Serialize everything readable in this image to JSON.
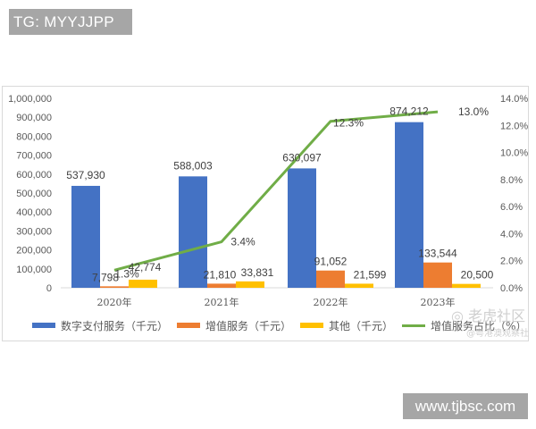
{
  "watermarks": {
    "top_left": "TG: MYYJJPP",
    "bottom_right": "www.tjbsc.com",
    "chart_brand": "老虎社区",
    "chart_source": "@粤港澳观察社"
  },
  "colors": {
    "digital_payment": "#4472c4",
    "value_added": "#ed7d31",
    "other": "#ffc000",
    "ratio_line": "#70ad47"
  },
  "legend": {
    "digital_payment": "数字支付服务（千元）",
    "value_added": "增值服务（千元）",
    "other": "其他（千元）",
    "ratio": "增值服务占比（%）"
  },
  "axes": {
    "left_ticks": [
      "1,000,000",
      "900,000",
      "800,000",
      "700,000",
      "600,000",
      "500,000",
      "400,000",
      "300,000",
      "200,000",
      "100,000",
      "0"
    ],
    "right_ticks": [
      "14.0%",
      "12.0%",
      "10.0%",
      "8.0%",
      "6.0%",
      "4.0%",
      "2.0%",
      "0.0%"
    ]
  },
  "labels": {
    "categories": [
      "2020年",
      "2021年",
      "2022年",
      "2023年"
    ],
    "digital_payment": [
      "537,930",
      "588,003",
      "630,097",
      "874,212"
    ],
    "value_added": [
      "7,798",
      "21,810",
      "91,052",
      "133,544"
    ],
    "other": [
      "42,774",
      "33,831",
      "21,599",
      "20,500"
    ],
    "ratio": [
      "1.3%",
      "3.4%",
      "12.3%",
      "13.0%"
    ]
  },
  "chart_data": {
    "type": "bar",
    "title": "",
    "xlabel": "",
    "ylabel": "",
    "categories": [
      "2020年",
      "2021年",
      "2022年",
      "2023年"
    ],
    "series": [
      {
        "name": "数字支付服务（千元）",
        "type": "bar",
        "axis": "left",
        "values": [
          537930,
          588003,
          630097,
          874212
        ]
      },
      {
        "name": "增值服务（千元）",
        "type": "bar",
        "axis": "left",
        "values": [
          7798,
          21810,
          91052,
          133544
        ]
      },
      {
        "name": "其他（千元）",
        "type": "bar",
        "axis": "left",
        "values": [
          42774,
          33831,
          21599,
          20500
        ]
      },
      {
        "name": "增值服务占比（%）",
        "type": "line",
        "axis": "right",
        "values": [
          1.3,
          3.4,
          12.3,
          13.0
        ]
      }
    ],
    "ylim": [
      0,
      1000000
    ],
    "y2lim": [
      0,
      14.0
    ],
    "grid": false,
    "legend_position": "bottom"
  }
}
